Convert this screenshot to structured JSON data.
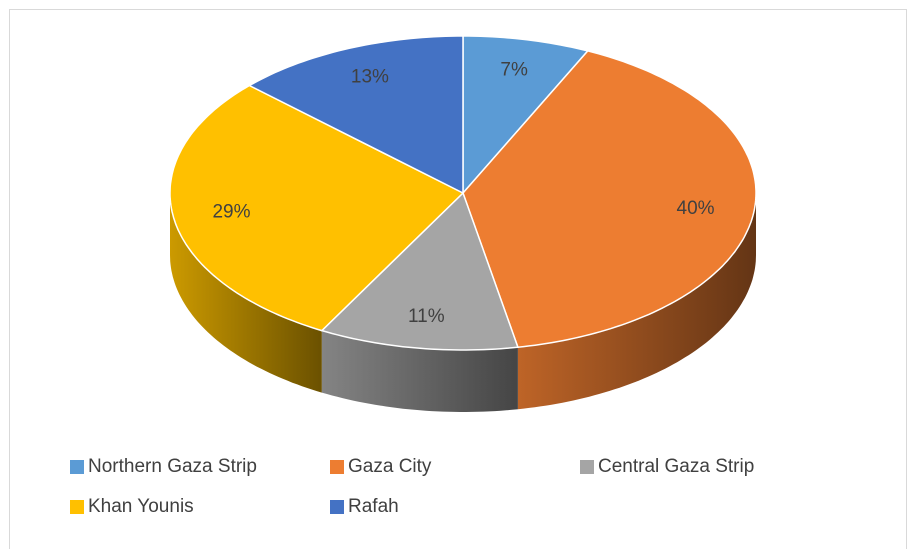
{
  "chart_data": {
    "type": "pie3d",
    "categories": [
      "Northern Gaza Strip",
      "Gaza City",
      "Central Gaza Strip",
      "Khan Younis",
      "Rafah"
    ],
    "values": [
      7,
      40,
      11,
      29,
      13
    ],
    "value_labels": [
      "7%",
      "40%",
      "11%",
      "29%",
      "13%"
    ],
    "colors": [
      "#5b9bd5",
      "#ed7d31",
      "#a5a5a5",
      "#ffc000",
      "#4472c4"
    ],
    "legend": "bottom"
  }
}
